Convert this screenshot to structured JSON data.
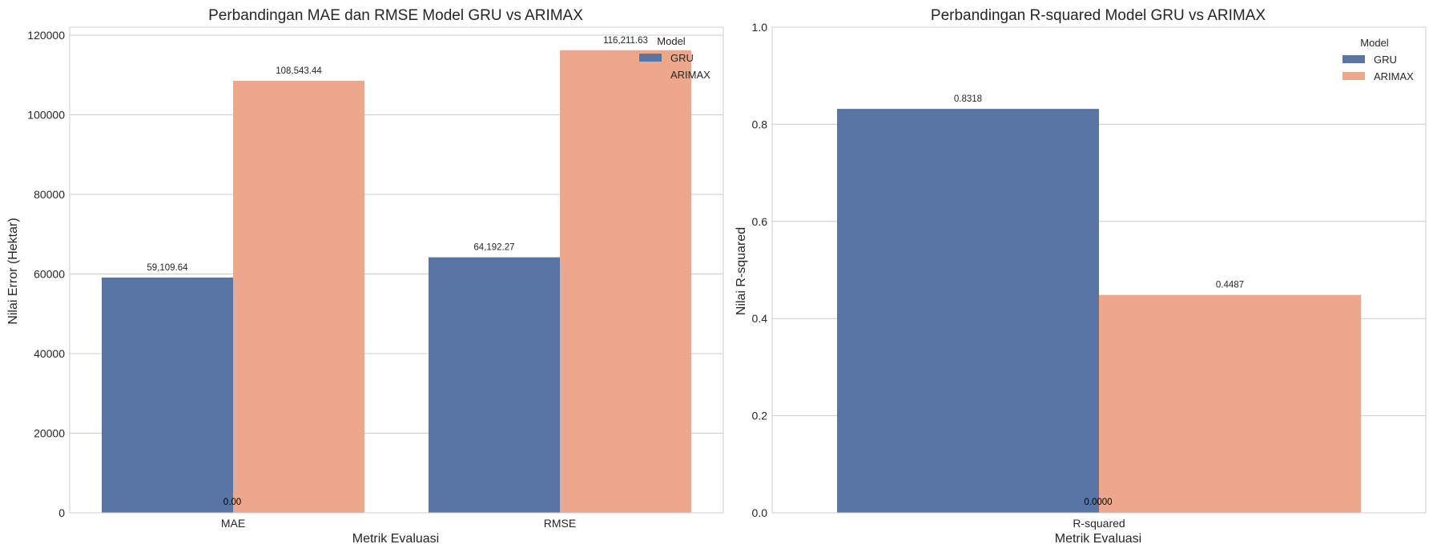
{
  "chart_data": [
    {
      "type": "bar",
      "title": "Perbandingan MAE dan RMSE Model GRU vs ARIMAX",
      "xlabel": "Metrik Evaluasi",
      "ylabel": "Nilai Error (Hektar)",
      "categories": [
        "MAE",
        "RMSE"
      ],
      "ylim": [
        0,
        122000
      ],
      "yticks": [
        0,
        20000,
        40000,
        60000,
        80000,
        100000,
        120000
      ],
      "ytick_labels": [
        "0",
        "20000",
        "40000",
        "60000",
        "80000",
        "100000",
        "120000"
      ],
      "series": [
        {
          "name": "GRU",
          "values": [
            59109.64,
            64192.27
          ],
          "labels": [
            "59,109.64",
            "64,192.27"
          ]
        },
        {
          "name": "ARIMAX",
          "values": [
            108543.44,
            116211.63
          ],
          "labels": [
            "108,543.44",
            "116,211.63"
          ]
        }
      ],
      "extra_labels": [
        {
          "text": "0.00"
        }
      ],
      "legend": {
        "title": "Model",
        "placement": "top-right"
      },
      "grid": true
    },
    {
      "type": "bar",
      "title": "Perbandingan R-squared Model GRU vs ARIMAX",
      "xlabel": "Metrik Evaluasi",
      "ylabel": "Nilai R-squared",
      "categories": [
        "R-squared"
      ],
      "ylim": [
        0,
        1.0
      ],
      "yticks": [
        0,
        0.2,
        0.4,
        0.6,
        0.8,
        1.0
      ],
      "ytick_labels": [
        "0.0",
        "0.2",
        "0.4",
        "0.6",
        "0.8",
        "1.0"
      ],
      "series": [
        {
          "name": "GRU",
          "values": [
            0.8318
          ],
          "labels": [
            "0.8318"
          ]
        },
        {
          "name": "ARIMAX",
          "values": [
            0.4487
          ],
          "labels": [
            "0.4487"
          ]
        }
      ],
      "extra_labels": [
        {
          "text": "0.0000"
        }
      ],
      "legend": {
        "title": "Model",
        "placement": "top-right"
      },
      "grid": true
    }
  ],
  "colors": {
    "GRU": "#5875a4",
    "ARIMAX": "#eda78a"
  }
}
